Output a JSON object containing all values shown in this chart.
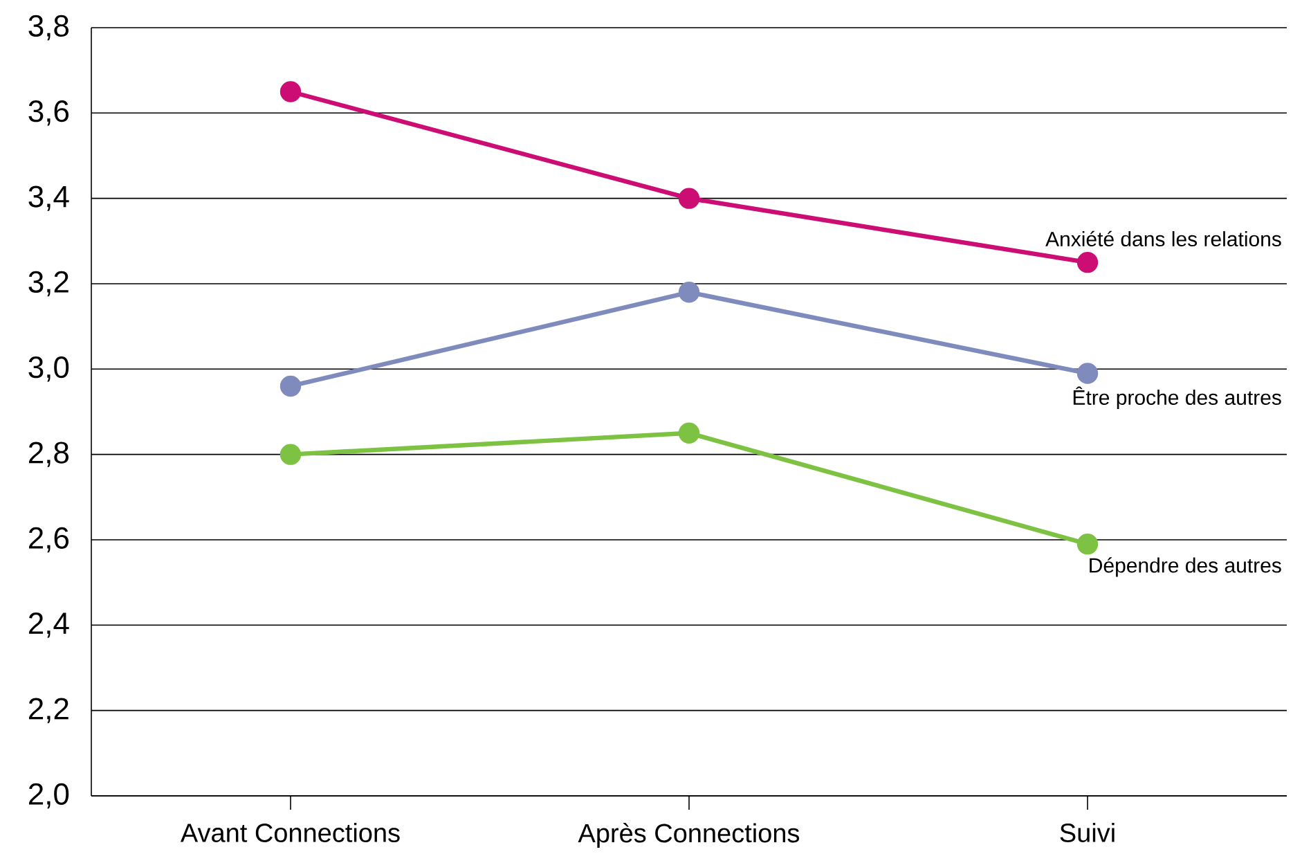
{
  "chart_data": {
    "type": "line",
    "categories": [
      "Avant Connections",
      "Après Connections",
      "Suivi"
    ],
    "series": [
      {
        "name": "Anxiété dans les relations",
        "color": "#cc0e74",
        "values": [
          3.65,
          3.4,
          3.25
        ]
      },
      {
        "name": "Être proche des autres",
        "color": "#7f8bbd",
        "values": [
          2.96,
          3.18,
          2.99
        ]
      },
      {
        "name": "Dépendre des autres",
        "color": "#7dc242",
        "values": [
          2.8,
          2.85,
          2.59
        ]
      }
    ],
    "ylim": [
      2.0,
      3.8
    ],
    "yticks": [
      {
        "value": 2.0,
        "label": "2,0"
      },
      {
        "value": 2.2,
        "label": "2,2"
      },
      {
        "value": 2.4,
        "label": "2,4"
      },
      {
        "value": 2.6,
        "label": "2,6"
      },
      {
        "value": 2.8,
        "label": "2,8"
      },
      {
        "value": 3.0,
        "label": "3,0"
      },
      {
        "value": 3.2,
        "label": "3,2"
      },
      {
        "value": 3.4,
        "label": "3,4"
      },
      {
        "value": 3.6,
        "label": "3,6"
      },
      {
        "value": 3.8,
        "label": "3,8"
      }
    ],
    "grid": "y",
    "legend": false,
    "marker": "circle",
    "line_style": "solid"
  }
}
